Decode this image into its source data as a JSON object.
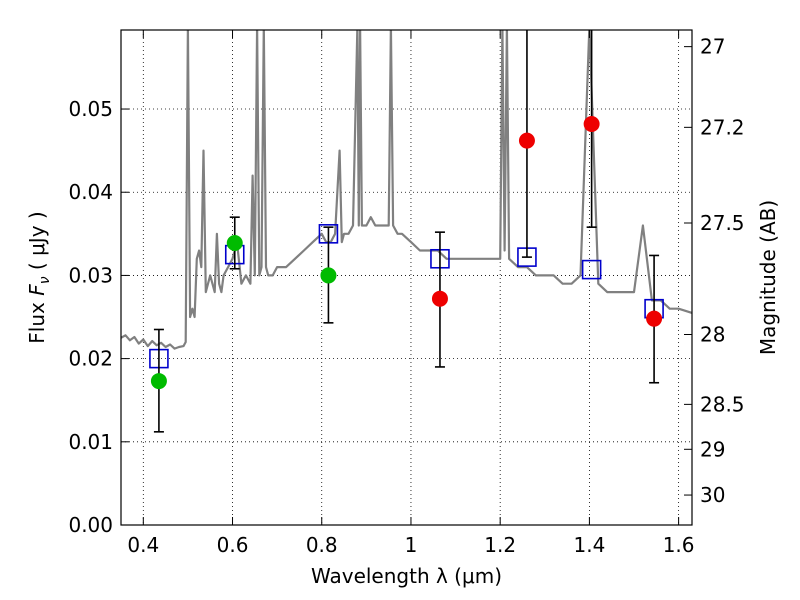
{
  "chart_data": {
    "type": "scatter",
    "xlabel": "Wavelength  λ (μm)",
    "ylabel": "Flux  F_ν  ( μJy )",
    "ylabel_parts": {
      "prefix": "Flux  ",
      "var": "F",
      "sub": "ν",
      "unit": "  ( μJy )"
    },
    "y2label": "Magnitude (AB)",
    "xlim": [
      0.35,
      1.63
    ],
    "ylim": [
      0.0,
      0.0595
    ],
    "grid": true,
    "x_ticks": [
      {
        "value": 0.4,
        "label": "0.4"
      },
      {
        "value": 0.6,
        "label": "0.6"
      },
      {
        "value": 0.8,
        "label": "0.8"
      },
      {
        "value": 1.0,
        "label": "1"
      },
      {
        "value": 1.2,
        "label": "1.2"
      },
      {
        "value": 1.4,
        "label": "1.4"
      },
      {
        "value": 1.6,
        "label": "1.6"
      }
    ],
    "y_ticks": [
      {
        "value": 0.0,
        "label": "0.00"
      },
      {
        "value": 0.01,
        "label": "0.01"
      },
      {
        "value": 0.02,
        "label": "0.02"
      },
      {
        "value": 0.03,
        "label": "0.03"
      },
      {
        "value": 0.04,
        "label": "0.04"
      },
      {
        "value": 0.05,
        "label": "0.05"
      }
    ],
    "y2_ticks": [
      {
        "flux": 0.0575,
        "label": "27"
      },
      {
        "flux": 0.0478,
        "label": "27.2"
      },
      {
        "flux": 0.0363,
        "label": "27.5"
      },
      {
        "flux": 0.0229,
        "label": "28"
      },
      {
        "flux": 0.0145,
        "label": "28.5"
      },
      {
        "flux": 0.0091,
        "label": "29"
      },
      {
        "flux": 0.0036,
        "label": "30"
      }
    ],
    "colors": {
      "spectrum": "#808080",
      "model": "#0000cc",
      "green": "#00bb00",
      "red": "#ee0000",
      "errorbar": "#000000",
      "grid": "#000000"
    },
    "series": [
      {
        "kind": "spectrum",
        "x": [
          0.35,
          0.36,
          0.37,
          0.38,
          0.39,
          0.4,
          0.41,
          0.42,
          0.43,
          0.44,
          0.45,
          0.46,
          0.47,
          0.48,
          0.49,
          0.495,
          0.5,
          0.505,
          0.51,
          0.515,
          0.52,
          0.525,
          0.53,
          0.535,
          0.54,
          0.55,
          0.56,
          0.565,
          0.57,
          0.575,
          0.58,
          0.59,
          0.6,
          0.61,
          0.62,
          0.63,
          0.64,
          0.645,
          0.65,
          0.655,
          0.66,
          0.665,
          0.67,
          0.675,
          0.68,
          0.69,
          0.7,
          0.72,
          0.74,
          0.76,
          0.78,
          0.8,
          0.81,
          0.82,
          0.83,
          0.84,
          0.845,
          0.85,
          0.86,
          0.87,
          0.88,
          0.883,
          0.886,
          0.89,
          0.9,
          0.91,
          0.92,
          0.93,
          0.95,
          0.955,
          0.96,
          0.97,
          0.98,
          1.0,
          1.02,
          1.04,
          1.06,
          1.08,
          1.1,
          1.12,
          1.14,
          1.16,
          1.18,
          1.2,
          1.205,
          1.21,
          1.215,
          1.22,
          1.24,
          1.26,
          1.28,
          1.3,
          1.32,
          1.34,
          1.36,
          1.38,
          1.4,
          1.42,
          1.44,
          1.46,
          1.48,
          1.5,
          1.52,
          1.54,
          1.56,
          1.58,
          1.6,
          1.63
        ],
        "y": [
          0.0225,
          0.0228,
          0.0222,
          0.0226,
          0.0218,
          0.0223,
          0.0215,
          0.0221,
          0.0216,
          0.0219,
          0.0214,
          0.0217,
          0.0212,
          0.0214,
          0.0215,
          0.022,
          0.06,
          0.025,
          0.026,
          0.025,
          0.032,
          0.033,
          0.031,
          0.045,
          0.028,
          0.03,
          0.028,
          0.035,
          0.029,
          0.028,
          0.03,
          0.031,
          0.032,
          0.034,
          0.029,
          0.03,
          0.029,
          0.042,
          0.03,
          0.06,
          0.03,
          0.031,
          0.06,
          0.031,
          0.03,
          0.03,
          0.031,
          0.031,
          0.032,
          0.033,
          0.034,
          0.035,
          0.034,
          0.034,
          0.035,
          0.045,
          0.034,
          0.035,
          0.035,
          0.036,
          0.06,
          0.036,
          0.06,
          0.036,
          0.036,
          0.037,
          0.036,
          0.036,
          0.036,
          0.06,
          0.036,
          0.035,
          0.035,
          0.034,
          0.033,
          0.033,
          0.033,
          0.032,
          0.032,
          0.032,
          0.032,
          0.032,
          0.032,
          0.032,
          0.06,
          0.033,
          0.06,
          0.032,
          0.031,
          0.031,
          0.03,
          0.03,
          0.03,
          0.029,
          0.029,
          0.03,
          0.06,
          0.029,
          0.028,
          0.028,
          0.028,
          0.028,
          0.036,
          0.027,
          0.027,
          0.026,
          0.026,
          0.0255
        ]
      },
      {
        "kind": "model",
        "x": [
          0.435,
          0.605,
          0.815,
          1.065,
          1.26,
          1.405,
          1.545
        ],
        "y": [
          0.02,
          0.0325,
          0.035,
          0.032,
          0.0322,
          0.0307,
          0.026
        ]
      },
      {
        "kind": "observed-green",
        "x": [
          0.435,
          0.605,
          0.815
        ],
        "y": [
          0.0173,
          0.0339,
          0.03
        ],
        "err_low": [
          0.0112,
          0.0308,
          0.0243
        ],
        "err_high": [
          0.0235,
          0.037,
          0.0358
        ]
      },
      {
        "kind": "observed-red",
        "x": [
          1.065,
          1.26,
          1.405,
          1.545
        ],
        "y": [
          0.0272,
          0.0462,
          0.0482,
          0.0248
        ],
        "err_low": [
          0.019,
          0.0322,
          0.0358,
          0.0171
        ],
        "err_high": [
          0.0352,
          0.06,
          0.06,
          0.0324
        ]
      }
    ]
  }
}
